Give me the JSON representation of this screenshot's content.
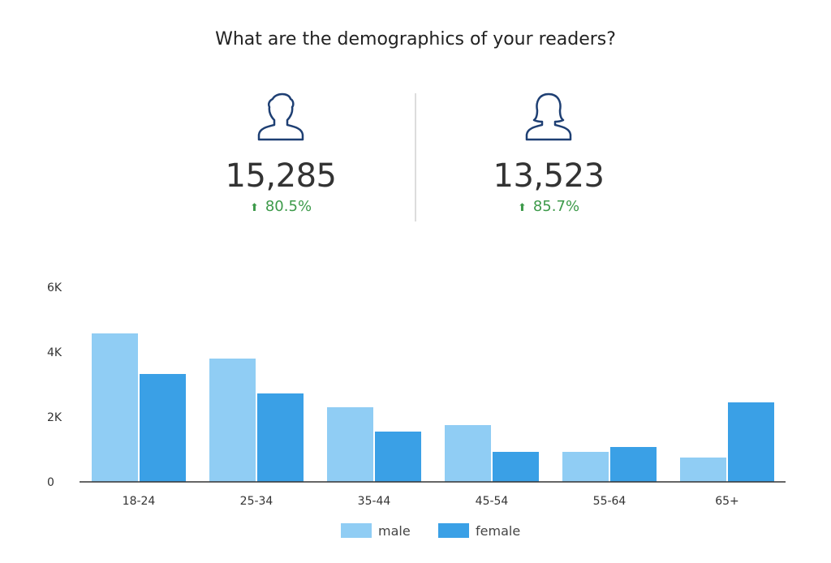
{
  "title": "What are the demographics of your readers?",
  "kpis": [
    {
      "icon": "male-user-icon",
      "value": "15,285",
      "change": "80.5%",
      "direction": "up"
    },
    {
      "icon": "female-user-icon",
      "value": "13,523",
      "change": "85.7%",
      "direction": "up"
    }
  ],
  "colors": {
    "male": "#90cdf4",
    "female": "#3aa0e6",
    "icon": "#1e3f73",
    "positive": "#3d9a4a"
  },
  "chart_data": {
    "type": "bar",
    "categories": [
      "18-24",
      "25-34",
      "35-44",
      "45-54",
      "55-64",
      "65+"
    ],
    "series": [
      {
        "name": "male",
        "values": [
          4575,
          3800,
          2300,
          1750,
          925,
          750
        ]
      },
      {
        "name": "female",
        "values": [
          3325,
          2725,
          1550,
          925,
          1075,
          2450
        ]
      }
    ],
    "ylim": [
      0,
      6000
    ],
    "yticks": [
      0,
      2000,
      4000,
      6000
    ],
    "ytick_labels": [
      "0",
      "2K",
      "4K",
      "6K"
    ],
    "grid": false,
    "legend": "bottom"
  }
}
